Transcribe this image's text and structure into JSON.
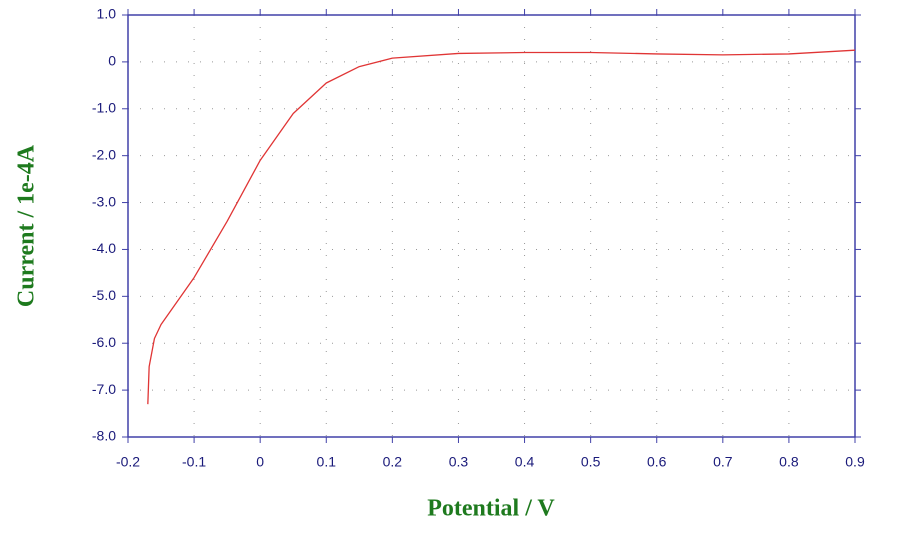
{
  "chart_data": {
    "type": "line",
    "x_label": "Potential / V",
    "y_label": "Current / 1e-4A",
    "x": [
      -0.17,
      -0.168,
      -0.16,
      -0.15,
      -0.13,
      -0.1,
      -0.05,
      0,
      0.05,
      0.1,
      0.15,
      0.2,
      0.3,
      0.4,
      0.5,
      0.6,
      0.7,
      0.8,
      0.9
    ],
    "series": [
      {
        "color": "#e03535",
        "values": [
          -7.3,
          -6.5,
          -5.9,
          -5.6,
          -5.2,
          -4.6,
          -3.4,
          -2.1,
          -1.1,
          -0.45,
          -0.1,
          0.08,
          0.18,
          0.2,
          0.2,
          0.17,
          0.15,
          0.17,
          0.25
        ]
      }
    ],
    "xlim": [
      -0.2,
      0.9
    ],
    "xticks": [
      -0.2,
      -0.1,
      0,
      0.1,
      0.2,
      0.3,
      0.4,
      0.5,
      0.6,
      0.7,
      0.8,
      0.9
    ],
    "ylim": [
      -8,
      1
    ],
    "yticks": [
      {
        "value": 1,
        "label": "1.0"
      },
      0,
      {
        "value": -1,
        "label": "-1.0"
      },
      {
        "value": -2,
        "label": "-2.0"
      },
      {
        "value": -3,
        "label": "-3.0"
      },
      {
        "value": -4,
        "label": "-4.0"
      },
      {
        "value": -5,
        "label": "-5.0"
      },
      {
        "value": -6,
        "label": "-6.0"
      },
      {
        "value": -7,
        "label": "-7.0"
      },
      {
        "value": -8,
        "label": "-8.0"
      }
    ],
    "grid": true
  }
}
